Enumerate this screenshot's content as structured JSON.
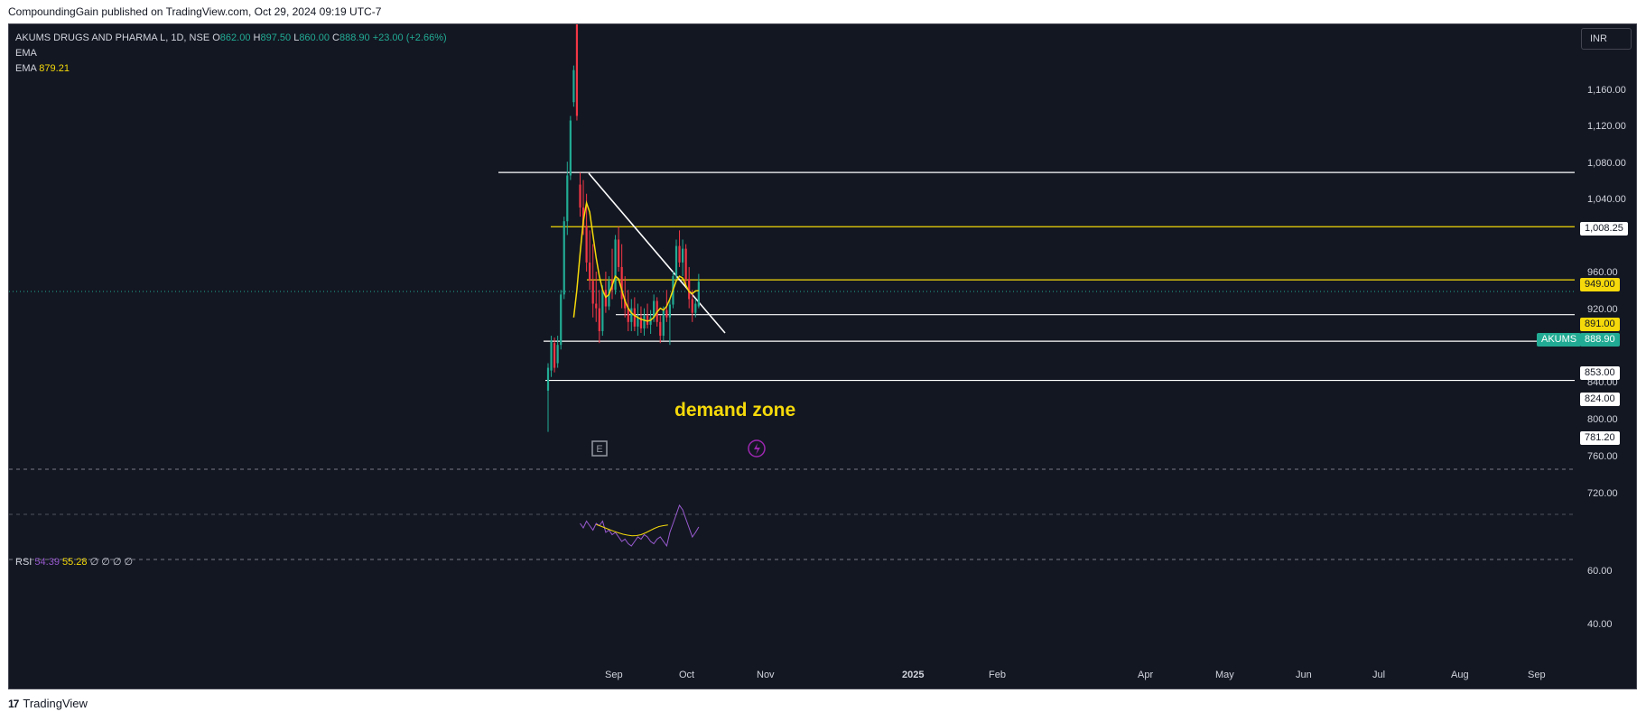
{
  "published": "CompoundingGain published on TradingView.com, Oct 29, 2024 09:19 UTC-7",
  "legend": {
    "symbol": "AKUMS DRUGS AND PHARMA L, 1D, NSE",
    "o_label": "O",
    "o": "862.00",
    "h_label": "H",
    "h": "897.50",
    "l_label": "L",
    "l": "860.00",
    "c_label": "C",
    "c": "888.90",
    "change": "+23.00 (+2.66%)",
    "ema1": "EMA",
    "ema2": "EMA",
    "ema2_value": "879.21"
  },
  "currency": "INR",
  "price_axis": [
    "1,160.00",
    "1,120.00",
    "1,080.00",
    "1,040.00",
    "960.00",
    "920.00",
    "840.00",
    "800.00",
    "760.00",
    "720.00"
  ],
  "level_tags": {
    "l1008": "1,008.25",
    "l949": "949.00",
    "l891": "891.00",
    "l853": "853.00",
    "l824": "824.00",
    "l781": "781.20"
  },
  "symbol_tag": "AKUMS",
  "last_price": "888.90",
  "annotation": "demand zone",
  "earnings_marker": "E",
  "rsi": {
    "label": "RSI",
    "value1": "54.39",
    "value2": "55.28",
    "extra": "∅ ∅ ∅ ∅",
    "axis": [
      "60.00",
      "40.00"
    ]
  },
  "time_axis": {
    "sep": "Sep",
    "oct": "Oct",
    "nov": "Nov",
    "y2025": "2025",
    "feb": "Feb",
    "apr": "Apr",
    "may": "May",
    "jun": "Jun",
    "jul": "Jul",
    "aug": "Aug",
    "sep2": "Sep"
  },
  "footer": "TradingView",
  "colors": {
    "bg": "#131722",
    "up": "#22ab94",
    "down": "#f23645",
    "ema": "#f5d90a",
    "rsi": "#9a5bd1"
  },
  "chart_data": {
    "type": "candlestick",
    "title": "AKUMS DRUGS AND PHARMA L, 1D, NSE",
    "ylim": [
      700,
      1200
    ],
    "horizontal_levels": [
      1008.25,
      949.0,
      891.0,
      853.0,
      824.0,
      781.2
    ],
    "x_labels": [
      "Sep",
      "Oct",
      "Nov",
      "2025",
      "Feb",
      "Apr",
      "May",
      "Jun",
      "Jul",
      "Aug",
      "Sep"
    ],
    "candles": [
      {
        "o": 770,
        "h": 800,
        "l": 725,
        "c": 795,
        "dir": "up"
      },
      {
        "o": 792,
        "h": 830,
        "l": 785,
        "c": 825,
        "dir": "up"
      },
      {
        "o": 822,
        "h": 828,
        "l": 790,
        "c": 795,
        "dir": "down"
      },
      {
        "o": 800,
        "h": 830,
        "l": 795,
        "c": 820,
        "dir": "up"
      },
      {
        "o": 820,
        "h": 880,
        "l": 815,
        "c": 875,
        "dir": "up"
      },
      {
        "o": 875,
        "h": 960,
        "l": 870,
        "c": 955,
        "dir": "up"
      },
      {
        "o": 955,
        "h": 1020,
        "l": 940,
        "c": 1005,
        "dir": "up"
      },
      {
        "o": 1005,
        "h": 1070,
        "l": 1000,
        "c": 1065,
        "dir": "up"
      },
      {
        "o": 1085,
        "h": 1125,
        "l": 1080,
        "c": 1120,
        "dir": "up"
      },
      {
        "o": 1170,
        "h": 1180,
        "l": 1065,
        "c": 1070,
        "dir": "down"
      },
      {
        "o": 995,
        "h": 1008,
        "l": 960,
        "c": 970,
        "dir": "down"
      },
      {
        "o": 970,
        "h": 1000,
        "l": 940,
        "c": 950,
        "dir": "down"
      },
      {
        "o": 950,
        "h": 985,
        "l": 900,
        "c": 910,
        "dir": "down"
      },
      {
        "o": 910,
        "h": 945,
        "l": 880,
        "c": 890,
        "dir": "down"
      },
      {
        "o": 890,
        "h": 930,
        "l": 850,
        "c": 865,
        "dir": "down"
      },
      {
        "o": 865,
        "h": 900,
        "l": 845,
        "c": 860,
        "dir": "down"
      },
      {
        "o": 860,
        "h": 880,
        "l": 822,
        "c": 835,
        "dir": "down"
      },
      {
        "o": 835,
        "h": 885,
        "l": 830,
        "c": 880,
        "dir": "up"
      },
      {
        "o": 880,
        "h": 900,
        "l": 855,
        "c": 862,
        "dir": "down"
      },
      {
        "o": 862,
        "h": 895,
        "l": 858,
        "c": 890,
        "dir": "up"
      },
      {
        "o": 890,
        "h": 925,
        "l": 870,
        "c": 880,
        "dir": "down"
      },
      {
        "o": 880,
        "h": 940,
        "l": 875,
        "c": 935,
        "dir": "up"
      },
      {
        "o": 935,
        "h": 949,
        "l": 900,
        "c": 905,
        "dir": "down"
      },
      {
        "o": 905,
        "h": 930,
        "l": 860,
        "c": 870,
        "dir": "down"
      },
      {
        "o": 870,
        "h": 895,
        "l": 850,
        "c": 860,
        "dir": "down"
      },
      {
        "o": 860,
        "h": 880,
        "l": 835,
        "c": 845,
        "dir": "down"
      },
      {
        "o": 845,
        "h": 870,
        "l": 835,
        "c": 860,
        "dir": "up"
      },
      {
        "o": 860,
        "h": 872,
        "l": 835,
        "c": 840,
        "dir": "down"
      },
      {
        "o": 840,
        "h": 865,
        "l": 830,
        "c": 850,
        "dir": "up"
      },
      {
        "o": 850,
        "h": 862,
        "l": 833,
        "c": 838,
        "dir": "down"
      },
      {
        "o": 838,
        "h": 860,
        "l": 830,
        "c": 852,
        "dir": "up"
      },
      {
        "o": 852,
        "h": 865,
        "l": 838,
        "c": 842,
        "dir": "down"
      },
      {
        "o": 842,
        "h": 858,
        "l": 832,
        "c": 850,
        "dir": "up"
      },
      {
        "o": 850,
        "h": 875,
        "l": 845,
        "c": 868,
        "dir": "up"
      },
      {
        "o": 868,
        "h": 872,
        "l": 840,
        "c": 845,
        "dir": "down"
      },
      {
        "o": 845,
        "h": 852,
        "l": 822,
        "c": 830,
        "dir": "down"
      },
      {
        "o": 830,
        "h": 862,
        "l": 825,
        "c": 858,
        "dir": "up"
      },
      {
        "o": 858,
        "h": 880,
        "l": 845,
        "c": 850,
        "dir": "down"
      },
      {
        "o": 850,
        "h": 870,
        "l": 820,
        "c": 864,
        "dir": "up"
      },
      {
        "o": 864,
        "h": 900,
        "l": 860,
        "c": 895,
        "dir": "up"
      },
      {
        "o": 895,
        "h": 935,
        "l": 890,
        "c": 928,
        "dir": "up"
      },
      {
        "o": 928,
        "h": 945,
        "l": 905,
        "c": 910,
        "dir": "down"
      },
      {
        "o": 910,
        "h": 935,
        "l": 895,
        "c": 925,
        "dir": "up"
      },
      {
        "o": 925,
        "h": 930,
        "l": 885,
        "c": 892,
        "dir": "down"
      },
      {
        "o": 892,
        "h": 905,
        "l": 860,
        "c": 870,
        "dir": "down"
      },
      {
        "o": 870,
        "h": 880,
        "l": 845,
        "c": 855,
        "dir": "down"
      },
      {
        "o": 855,
        "h": 870,
        "l": 850,
        "c": 865,
        "dir": "up"
      },
      {
        "o": 862,
        "h": 897.5,
        "l": 860,
        "c": 888.9,
        "dir": "up"
      }
    ],
    "ema": [
      850,
      880,
      920,
      955,
      975,
      965,
      940,
      915,
      895,
      880,
      872,
      875,
      885,
      895,
      892,
      880,
      868,
      860,
      855,
      852,
      850,
      848,
      847,
      846,
      847,
      850,
      856,
      860,
      858,
      862,
      870,
      880,
      890,
      895,
      893,
      885,
      878,
      876,
      879,
      879.21
    ]
  }
}
